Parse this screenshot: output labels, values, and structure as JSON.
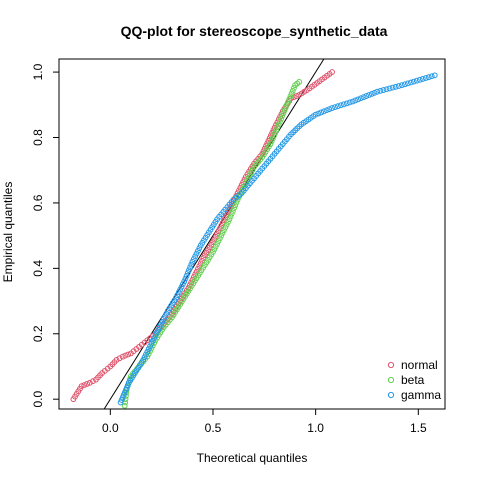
{
  "chart_data": {
    "type": "scatter",
    "title": "QQ-plot for stereoscope_synthetic_data",
    "xlabel": "Theoretical quantiles",
    "ylabel": "Empirical quantiles",
    "xlim": [
      -0.25,
      1.63
    ],
    "ylim": [
      -0.03,
      1.04
    ],
    "x_ticks": [
      0.0,
      0.5,
      1.0,
      1.5
    ],
    "x_tick_labels": [
      "0.0",
      "0.5",
      "1.0",
      "1.5"
    ],
    "y_ticks": [
      0.0,
      0.2,
      0.4,
      0.6,
      0.8,
      1.0
    ],
    "y_tick_labels": [
      "0.0",
      "0.2",
      "0.4",
      "0.6",
      "0.8",
      "1.0"
    ],
    "reference_line": {
      "slope": 1,
      "intercept": 0
    },
    "legend_position": "bottom-right",
    "grid": false,
    "series": [
      {
        "name": "normal",
        "color": "#DF536B",
        "points": [
          [
            -0.18,
            0.0
          ],
          [
            -0.14,
            0.04
          ],
          [
            -0.1,
            0.05
          ],
          [
            -0.07,
            0.06
          ],
          [
            -0.04,
            0.08
          ],
          [
            0.0,
            0.1
          ],
          [
            0.03,
            0.12
          ],
          [
            0.06,
            0.13
          ],
          [
            0.1,
            0.14
          ],
          [
            0.14,
            0.16
          ],
          [
            0.18,
            0.18
          ],
          [
            0.22,
            0.2
          ],
          [
            0.26,
            0.23
          ],
          [
            0.3,
            0.26
          ],
          [
            0.34,
            0.3
          ],
          [
            0.38,
            0.34
          ],
          [
            0.42,
            0.39
          ],
          [
            0.46,
            0.44
          ],
          [
            0.5,
            0.48
          ],
          [
            0.54,
            0.53
          ],
          [
            0.58,
            0.58
          ],
          [
            0.62,
            0.63
          ],
          [
            0.66,
            0.68
          ],
          [
            0.7,
            0.72
          ],
          [
            0.74,
            0.75
          ],
          [
            0.77,
            0.79
          ],
          [
            0.8,
            0.83
          ],
          [
            0.84,
            0.88
          ],
          [
            0.88,
            0.92
          ],
          [
            0.92,
            0.93
          ],
          [
            0.97,
            0.95
          ],
          [
            1.08,
            1.0
          ]
        ]
      },
      {
        "name": "beta",
        "color": "#61D04F",
        "points": [
          [
            0.07,
            -0.02
          ],
          [
            0.08,
            0.03
          ],
          [
            0.09,
            0.05
          ],
          [
            0.1,
            0.07
          ],
          [
            0.14,
            0.1
          ],
          [
            0.18,
            0.13
          ],
          [
            0.22,
            0.18
          ],
          [
            0.26,
            0.22
          ],
          [
            0.3,
            0.25
          ],
          [
            0.34,
            0.29
          ],
          [
            0.38,
            0.33
          ],
          [
            0.42,
            0.37
          ],
          [
            0.46,
            0.41
          ],
          [
            0.5,
            0.45
          ],
          [
            0.54,
            0.5
          ],
          [
            0.58,
            0.55
          ],
          [
            0.62,
            0.61
          ],
          [
            0.66,
            0.66
          ],
          [
            0.7,
            0.71
          ],
          [
            0.74,
            0.74
          ],
          [
            0.78,
            0.78
          ],
          [
            0.82,
            0.84
          ],
          [
            0.86,
            0.9
          ],
          [
            0.9,
            0.96
          ],
          [
            0.92,
            0.97
          ]
        ]
      },
      {
        "name": "gamma",
        "color": "#2297E6",
        "points": [
          [
            0.05,
            -0.01
          ],
          [
            0.07,
            0.02
          ],
          [
            0.09,
            0.05
          ],
          [
            0.12,
            0.08
          ],
          [
            0.16,
            0.12
          ],
          [
            0.2,
            0.17
          ],
          [
            0.24,
            0.22
          ],
          [
            0.28,
            0.27
          ],
          [
            0.32,
            0.31
          ],
          [
            0.36,
            0.36
          ],
          [
            0.4,
            0.42
          ],
          [
            0.44,
            0.47
          ],
          [
            0.48,
            0.51
          ],
          [
            0.52,
            0.55
          ],
          [
            0.56,
            0.58
          ],
          [
            0.6,
            0.61
          ],
          [
            0.64,
            0.63
          ],
          [
            0.68,
            0.66
          ],
          [
            0.72,
            0.69
          ],
          [
            0.76,
            0.72
          ],
          [
            0.8,
            0.75
          ],
          [
            0.84,
            0.78
          ],
          [
            0.88,
            0.81
          ],
          [
            0.93,
            0.84
          ],
          [
            1.0,
            0.87
          ],
          [
            1.08,
            0.89
          ],
          [
            1.18,
            0.91
          ],
          [
            1.3,
            0.94
          ],
          [
            1.42,
            0.96
          ],
          [
            1.58,
            0.99
          ]
        ]
      }
    ]
  }
}
